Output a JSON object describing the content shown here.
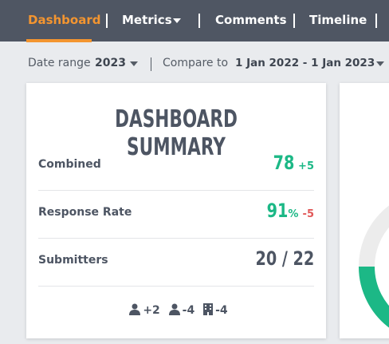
{
  "nav": {
    "items": [
      "Dashboard",
      "Metrics",
      "Comments",
      "Timeline"
    ]
  },
  "filters": {
    "date_label": "Date range",
    "date_value": "2023",
    "compare_label": "Compare to",
    "compare_value": "1 Jan 2022 - 1 Jan 2023"
  },
  "summary": {
    "title": "DASHBOARD SUMMARY",
    "rows": [
      {
        "label": "Combined",
        "value": "78",
        "change": "+5"
      },
      {
        "label": "Response Rate",
        "value": "91",
        "unit": "%",
        "change": "-5"
      },
      {
        "label": "Submitters",
        "value": "20 / 22"
      }
    ],
    "footer": [
      "+2",
      "-4",
      "-4"
    ]
  }
}
